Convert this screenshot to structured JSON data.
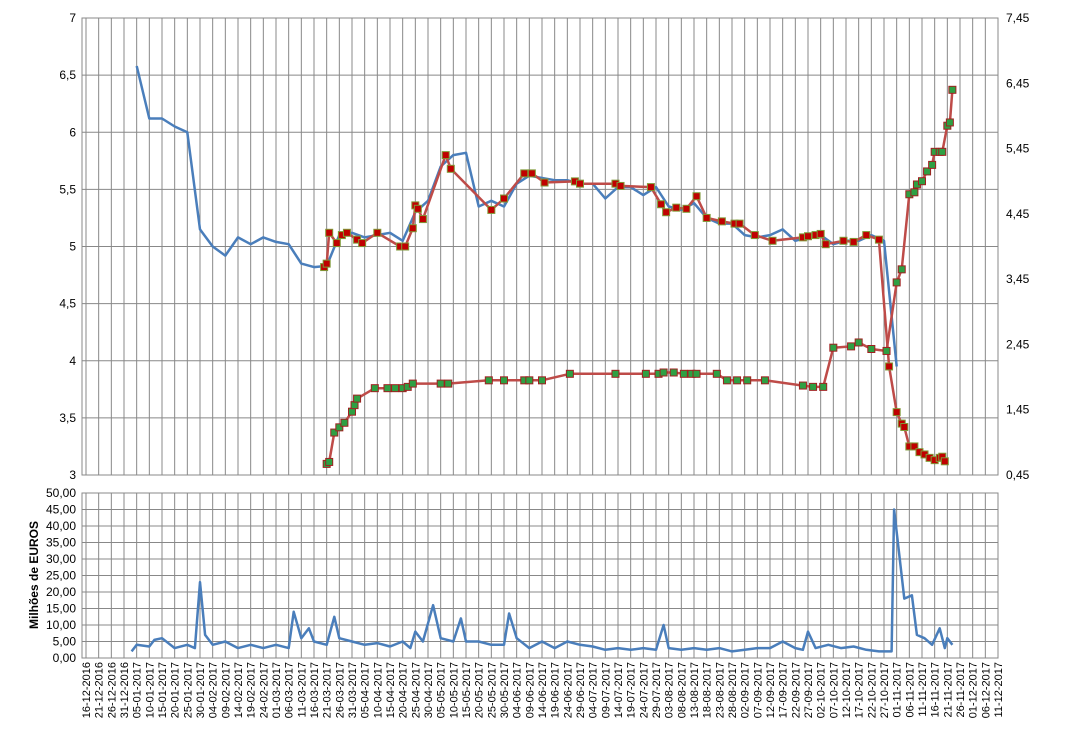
{
  "chart_data": [
    {
      "type": "line",
      "xlim": [
        "16-12-2016",
        "11-12-2017"
      ],
      "ylim": [
        3,
        7
      ],
      "yticks": [
        3,
        {
          "value": 3.5,
          "label": "3,5"
        },
        4,
        {
          "value": 4.5,
          "label": "4,5"
        },
        5,
        {
          "value": 5.5,
          "label": "5,5"
        },
        6,
        {
          "value": 6.5,
          "label": "6,5"
        },
        7
      ],
      "y2lim": [
        0.45,
        7.45
      ],
      "y2ticks": [
        {
          "value": 0.45,
          "label": "0,45"
        },
        {
          "value": 1.45,
          "label": "1,45"
        },
        {
          "value": 2.45,
          "label": "2,45"
        },
        {
          "value": 3.45,
          "label": "3,45"
        },
        {
          "value": 4.45,
          "label": "4,45"
        },
        {
          "value": 5.45,
          "label": "5,45"
        },
        {
          "value": 6.45,
          "label": "6,45"
        },
        {
          "value": 7.45,
          "label": "7,45"
        }
      ],
      "grid": true,
      "series": [
        {
          "color": "#4a7ebb",
          "x": [
            "05-01-2017",
            "10-01-2017",
            "15-01-2017",
            "20-01-2017",
            "25-01-2017",
            "30-01-2017",
            "04-02-2017",
            "09-02-2017",
            "14-02-2017",
            "19-02-2017",
            "24-02-2017",
            "01-03-2017",
            "06-03-2017",
            "11-03-2017",
            "16-03-2017",
            "21-03-2017",
            "26-03-2017",
            "31-03-2017",
            "05-04-2017",
            "10-04-2017",
            "15-04-2017",
            "20-04-2017",
            "25-04-2017",
            "30-04-2017",
            "05-05-2017",
            "10-05-2017",
            "15-05-2017",
            "20-05-2017",
            "25-05-2017",
            "30-05-2017",
            "04-06-2017",
            "09-06-2017",
            "14-06-2017",
            "19-06-2017",
            "24-06-2017",
            "29-06-2017",
            "04-07-2017",
            "09-07-2017",
            "14-07-2017",
            "19-07-2017",
            "24-07-2017",
            "29-07-2017",
            "03-08-2017",
            "08-08-2017",
            "13-08-2017",
            "18-08-2017",
            "23-08-2017",
            "28-08-2017",
            "02-09-2017",
            "07-09-2017",
            "12-09-2017",
            "17-09-2017",
            "22-09-2017",
            "27-09-2017",
            "02-10-2017",
            "07-10-2017",
            "12-10-2017",
            "17-10-2017",
            "22-10-2017",
            "27-10-2017",
            "01-11-2017"
          ],
          "values": [
            6.58,
            6.12,
            6.12,
            6.05,
            6.0,
            5.15,
            5.0,
            4.92,
            5.08,
            5.02,
            5.08,
            5.04,
            5.02,
            4.85,
            4.82,
            4.83,
            5.1,
            5.12,
            5.08,
            5.1,
            5.12,
            5.05,
            5.3,
            5.4,
            5.7,
            5.8,
            5.82,
            5.35,
            5.4,
            5.35,
            5.55,
            5.62,
            5.6,
            5.58,
            5.58,
            5.55,
            5.55,
            5.42,
            5.52,
            5.52,
            5.45,
            5.52,
            5.35,
            5.32,
            5.38,
            5.25,
            5.2,
            5.2,
            5.1,
            5.08,
            5.1,
            5.15,
            5.05,
            5.08,
            5.1,
            5.02,
            5.05,
            5.05,
            5.1,
            5.05,
            3.95
          ]
        },
        {
          "color": "#be4b48",
          "marker_fill": "#c00000",
          "marker_stroke": "#7f9a38",
          "x": [
            "20-03-2017",
            "21-03-2017",
            "22-03-2017",
            "25-03-2017",
            "27-03-2017",
            "29-03-2017",
            "02-04-2017",
            "04-04-2017",
            "10-04-2017",
            "19-04-2017",
            "21-04-2017",
            "24-04-2017",
            "25-04-2017",
            "26-04-2017",
            "28-04-2017",
            "07-05-2017",
            "09-05-2017",
            "25-05-2017",
            "30-05-2017",
            "07-06-2017",
            "10-06-2017",
            "15-06-2017",
            "27-06-2017",
            "29-06-2017",
            "13-07-2017",
            "15-07-2017",
            "27-07-2017",
            "31-07-2017",
            "02-08-2017",
            "06-08-2017",
            "10-08-2017",
            "14-08-2017",
            "18-08-2017",
            "24-08-2017",
            "29-08-2017",
            "31-08-2017",
            "06-09-2017",
            "13-09-2017",
            "25-09-2017",
            "27-09-2017",
            "30-09-2017",
            "02-10-2017",
            "04-10-2017",
            "11-10-2017",
            "15-10-2017",
            "20-10-2017",
            "25-10-2017",
            "29-10-2017",
            "01-11-2017",
            "03-11-2017",
            "04-11-2017",
            "06-11-2017",
            "08-11-2017",
            "10-11-2017",
            "12-11-2017",
            "14-11-2017",
            "16-11-2017",
            "18-11-2017",
            "19-11-2017",
            "20-11-2017"
          ],
          "values": [
            4.82,
            4.85,
            5.12,
            5.03,
            5.1,
            5.12,
            5.06,
            5.03,
            5.12,
            5.0,
            5.0,
            5.16,
            5.36,
            5.33,
            5.24,
            5.8,
            5.68,
            5.32,
            5.42,
            5.64,
            5.64,
            5.56,
            5.57,
            5.55,
            5.55,
            5.53,
            5.52,
            5.37,
            5.3,
            5.34,
            5.33,
            5.44,
            5.25,
            5.22,
            5.2,
            5.2,
            5.1,
            5.05,
            5.08,
            5.09,
            5.1,
            5.11,
            5.02,
            5.05,
            5.04,
            5.1,
            5.06,
            3.95,
            3.55,
            3.45,
            3.42,
            3.25,
            3.25,
            3.2,
            3.18,
            3.15,
            3.13,
            3.15,
            3.16,
            3.12
          ]
        },
        {
          "color": "#be4b48",
          "marker_fill": "#2ea043",
          "marker_stroke": "#a02020",
          "axis": "y2",
          "x": [
            "21-03-2017",
            "22-03-2017",
            "24-03-2017",
            "26-03-2017",
            "28-03-2017",
            "31-03-2017",
            "01-04-2017",
            "02-04-2017",
            "09-04-2017",
            "14-04-2017",
            "17-04-2017",
            "20-04-2017",
            "22-04-2017",
            "24-04-2017",
            "05-05-2017",
            "08-05-2017",
            "24-05-2017",
            "30-05-2017",
            "07-06-2017",
            "09-06-2017",
            "14-06-2017",
            "25-06-2017",
            "13-07-2017",
            "25-07-2017",
            "30-07-2017",
            "01-08-2017",
            "05-08-2017",
            "09-08-2017",
            "12-08-2017",
            "14-08-2017",
            "22-08-2017",
            "26-08-2017",
            "30-08-2017",
            "03-09-2017",
            "10-09-2017",
            "25-09-2017",
            "29-09-2017",
            "03-10-2017",
            "07-10-2017",
            "14-10-2017",
            "17-10-2017",
            "22-10-2017",
            "28-10-2017",
            "01-11-2017",
            "03-11-2017",
            "06-11-2017",
            "08-11-2017",
            "09-11-2017",
            "11-11-2017",
            "13-11-2017",
            "15-11-2017",
            "16-11-2017",
            "18-11-2017",
            "19-11-2017",
            "21-11-2017",
            "22-11-2017",
            "23-11-2017"
          ],
          "values": [
            0.62,
            0.65,
            1.1,
            1.18,
            1.25,
            1.42,
            1.52,
            1.62,
            1.78,
            1.78,
            1.78,
            1.78,
            1.8,
            1.85,
            1.85,
            1.85,
            1.9,
            1.9,
            1.9,
            1.9,
            1.9,
            2.0,
            2.0,
            2.0,
            2.0,
            2.02,
            2.02,
            2.0,
            2.0,
            2.0,
            2.0,
            1.9,
            1.9,
            1.9,
            1.9,
            1.82,
            1.8,
            1.8,
            2.4,
            2.42,
            2.48,
            2.38,
            2.35,
            3.4,
            3.6,
            4.75,
            4.78,
            4.9,
            4.95,
            5.1,
            5.2,
            5.4,
            5.4,
            5.4,
            5.8,
            5.85,
            6.35
          ]
        }
      ]
    },
    {
      "type": "line",
      "ylabel": "Milhões de EUROS",
      "xlim": [
        "16-12-2016",
        "11-12-2017"
      ],
      "ylim": [
        0,
        50
      ],
      "yticks": [
        {
          "value": 0,
          "label": "0,00"
        },
        {
          "value": 5,
          "label": "5,00"
        },
        {
          "value": 10,
          "label": "10,00"
        },
        {
          "value": 15,
          "label": "15,00"
        },
        {
          "value": 20,
          "label": "20,00"
        },
        {
          "value": 25,
          "label": "25,00"
        },
        {
          "value": 30,
          "label": "30,00"
        },
        {
          "value": 35,
          "label": "35,00"
        },
        {
          "value": 40,
          "label": "40,00"
        },
        {
          "value": 45,
          "label": "45,00"
        },
        {
          "value": 50,
          "label": "50,00"
        }
      ],
      "xticks": [
        "16-12-2016",
        "21-12-2016",
        "26-12-2016",
        "31-12-2016",
        "05-01-2017",
        "10-01-2017",
        "15-01-2017",
        "20-01-2017",
        "25-01-2017",
        "30-01-2017",
        "04-02-2017",
        "09-02-2017",
        "14-02-2017",
        "19-02-2017",
        "24-02-2017",
        "01-03-2017",
        "06-03-2017",
        "11-03-2017",
        "16-03-2017",
        "21-03-2017",
        "26-03-2017",
        "31-03-2017",
        "05-04-2017",
        "10-04-2017",
        "15-04-2017",
        "20-04-2017",
        "25-04-2017",
        "30-04-2017",
        "05-05-2017",
        "10-05-2017",
        "15-05-2017",
        "20-05-2017",
        "25-05-2017",
        "30-05-2017",
        "04-06-2017",
        "09-06-2017",
        "14-06-2017",
        "19-06-2017",
        "24-06-2017",
        "29-06-2017",
        "04-07-2017",
        "09-07-2017",
        "14-07-2017",
        "19-07-2017",
        "24-07-2017",
        "29-07-2017",
        "03-08-2017",
        "08-08-2017",
        "13-08-2017",
        "18-08-2017",
        "23-08-2017",
        "28-08-2017",
        "02-09-2017",
        "07-09-2017",
        "12-09-2017",
        "17-09-2017",
        "22-09-2017",
        "27-09-2017",
        "02-10-2017",
        "07-10-2017",
        "12-10-2017",
        "17-10-2017",
        "22-10-2017",
        "27-10-2017",
        "01-11-2017",
        "06-11-2017",
        "11-11-2017",
        "16-11-2017",
        "21-11-2017",
        "26-11-2017",
        "01-12-2017",
        "06-12-2017",
        "11-12-2017"
      ],
      "grid": true,
      "series": [
        {
          "color": "#4a7ebb",
          "x": [
            "03-01-2017",
            "05-01-2017",
            "10-01-2017",
            "12-01-2017",
            "15-01-2017",
            "20-01-2017",
            "25-01-2017",
            "28-01-2017",
            "30-01-2017",
            "01-02-2017",
            "04-02-2017",
            "09-02-2017",
            "14-02-2017",
            "19-02-2017",
            "24-02-2017",
            "01-03-2017",
            "06-03-2017",
            "08-03-2017",
            "11-03-2017",
            "14-03-2017",
            "16-03-2017",
            "21-03-2017",
            "24-03-2017",
            "26-03-2017",
            "31-03-2017",
            "05-04-2017",
            "10-04-2017",
            "15-04-2017",
            "20-04-2017",
            "23-04-2017",
            "25-04-2017",
            "28-04-2017",
            "02-05-2017",
            "05-05-2017",
            "10-05-2017",
            "13-05-2017",
            "15-05-2017",
            "20-05-2017",
            "25-05-2017",
            "30-05-2017",
            "01-06-2017",
            "04-06-2017",
            "09-06-2017",
            "14-06-2017",
            "19-06-2017",
            "24-06-2017",
            "29-06-2017",
            "04-07-2017",
            "09-07-2017",
            "14-07-2017",
            "19-07-2017",
            "24-07-2017",
            "29-07-2017",
            "01-08-2017",
            "03-08-2017",
            "08-08-2017",
            "13-08-2017",
            "18-08-2017",
            "23-08-2017",
            "28-08-2017",
            "02-09-2017",
            "07-09-2017",
            "12-09-2017",
            "17-09-2017",
            "22-09-2017",
            "25-09-2017",
            "27-09-2017",
            "30-09-2017",
            "05-10-2017",
            "10-10-2017",
            "15-10-2017",
            "20-10-2017",
            "25-10-2017",
            "30-10-2017",
            "31-10-2017",
            "04-11-2017",
            "07-11-2017",
            "09-11-2017",
            "12-11-2017",
            "15-11-2017",
            "18-11-2017",
            "20-11-2017",
            "21-11-2017",
            "23-11-2017"
          ],
          "values": [
            2,
            4,
            3.5,
            5.5,
            6,
            3,
            4,
            3,
            23,
            7,
            4,
            5,
            3,
            4,
            3,
            4,
            3,
            14,
            6,
            9,
            5,
            4,
            12.5,
            6,
            5,
            4,
            4.5,
            3.5,
            5,
            3,
            8,
            5,
            16,
            6,
            5,
            12,
            5,
            5,
            4,
            4,
            13.5,
            6,
            3,
            5,
            3,
            5,
            4,
            3.5,
            2.5,
            3,
            2.5,
            3,
            2.5,
            10,
            3,
            2.5,
            3,
            2.5,
            3,
            2,
            2.5,
            3,
            3,
            5,
            3,
            2.5,
            8,
            3,
            4,
            3,
            3.5,
            2.5,
            2,
            2,
            45,
            18,
            19,
            7,
            6,
            4,
            9,
            3,
            6,
            4
          ]
        }
      ]
    }
  ]
}
